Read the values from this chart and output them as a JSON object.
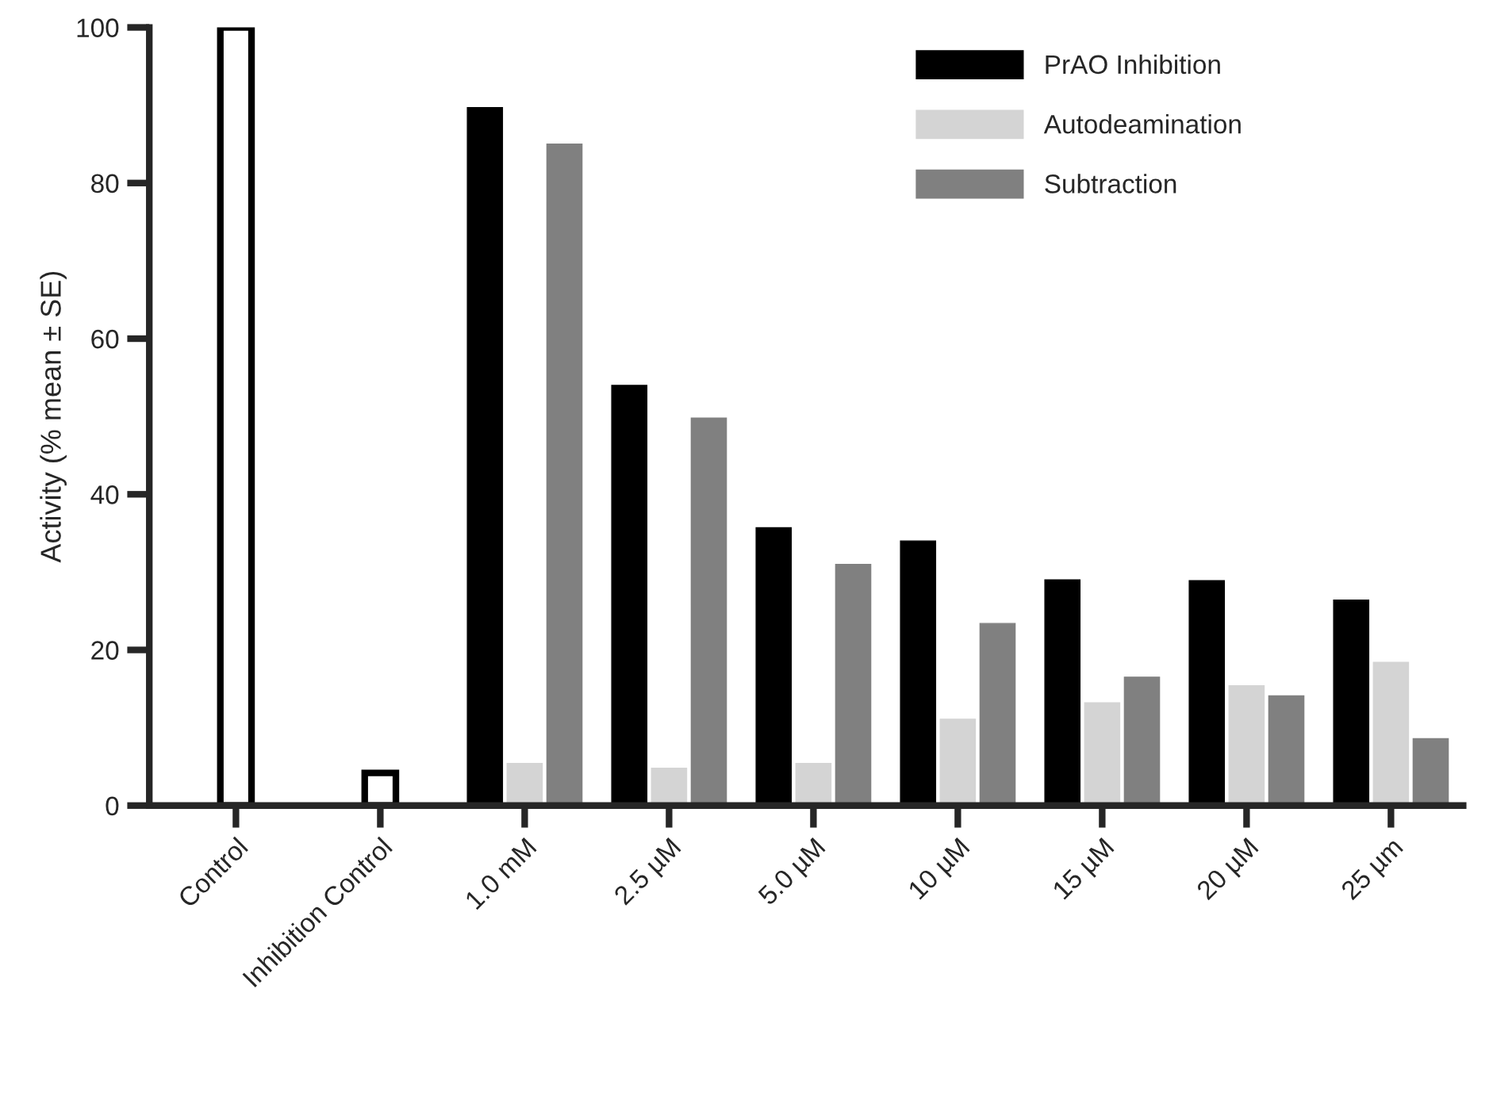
{
  "chart_data": {
    "type": "bar",
    "ylabel": "Activity (% mean ± SE)",
    "categories": [
      "Control",
      "Inhibition Control",
      "1.0 mM",
      "2.5 µM",
      "5.0 µM",
      "10 µM",
      "15 µM",
      "20 µM",
      "25 µm"
    ],
    "series": [
      {
        "color": "#ffffff",
        "values": [
          100,
          4.2,
          null,
          null,
          null,
          null,
          null,
          null,
          null
        ]
      },
      {
        "name": "PrAO Inhibition",
        "color": "#000000",
        "values": [
          null,
          null,
          89.7,
          54.0,
          35.7,
          34.0,
          29.0,
          28.9,
          26.4
        ]
      },
      {
        "name": "Autodeamination",
        "color": "#d4d4d4",
        "values": [
          null,
          null,
          5.4,
          4.8,
          5.4,
          11.1,
          13.2,
          15.4,
          18.4
        ]
      },
      {
        "name": "Subtraction",
        "color": "#808080",
        "values": [
          null,
          null,
          85.0,
          49.8,
          31.0,
          23.4,
          16.5,
          14.1,
          8.6
        ]
      }
    ],
    "ylim": [
      0,
      100
    ],
    "yticks": [
      0,
      20,
      40,
      60,
      80,
      100
    ],
    "grid": false,
    "legend": "top right"
  }
}
